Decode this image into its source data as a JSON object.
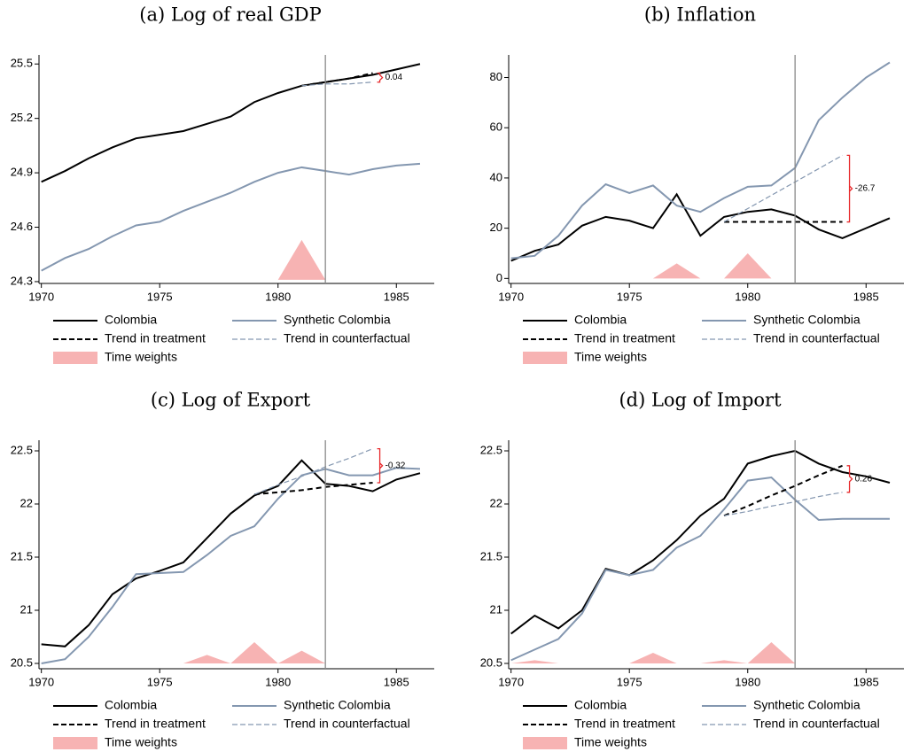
{
  "chart_data": [
    {
      "type": "line",
      "title": "(a) Log of real GDP",
      "x": [
        1970,
        1971,
        1972,
        1973,
        1974,
        1975,
        1976,
        1977,
        1978,
        1979,
        1980,
        1981,
        1982,
        1983,
        1984,
        1985,
        1986
      ],
      "xlim": [
        1969.9,
        1986.6
      ],
      "xticks": [
        1970,
        1975,
        1980,
        1985
      ],
      "ylim": [
        24.29,
        25.55
      ],
      "yticks": [
        24.3,
        24.6,
        24.9,
        25.2,
        25.5
      ],
      "vline": 1982,
      "annotation": "0.04",
      "annotation_color": "#e8282a",
      "series": [
        {
          "name": "Colombia",
          "color": "#000000",
          "dashed": false,
          "values": [
            24.85,
            24.91,
            24.98,
            25.04,
            25.09,
            25.11,
            25.13,
            25.17,
            25.21,
            25.29,
            25.34,
            25.38,
            25.4,
            25.42,
            25.44,
            25.47,
            25.5
          ]
        },
        {
          "name": "Synthetic Colombia",
          "color": "#8497b0",
          "dashed": false,
          "values": [
            24.36,
            24.43,
            24.48,
            24.55,
            24.61,
            24.63,
            24.69,
            24.74,
            24.79,
            24.85,
            24.9,
            24.93,
            24.91,
            24.89,
            24.92,
            24.94,
            24.95
          ]
        },
        {
          "name": "Trend in treatment",
          "color": "#000000",
          "dashed": true,
          "values": [
            null,
            null,
            null,
            null,
            null,
            null,
            null,
            null,
            null,
            null,
            null,
            25.38,
            25.4,
            25.42,
            25.45,
            null,
            null
          ]
        },
        {
          "name": "Trend in counterfactual",
          "color": "#8497b0",
          "dashed": true,
          "values": [
            null,
            null,
            null,
            null,
            null,
            null,
            null,
            null,
            null,
            null,
            null,
            25.38,
            25.39,
            25.39,
            25.4,
            null,
            null
          ]
        },
        {
          "name": "Time weights",
          "color": "#f7b3b3",
          "area": true,
          "values": [
            24.31,
            24.31,
            24.31,
            24.31,
            24.31,
            24.31,
            24.31,
            24.31,
            24.31,
            24.31,
            24.31,
            24.53,
            24.31,
            null,
            null,
            null,
            null
          ]
        }
      ]
    },
    {
      "type": "line",
      "title": "(b) Inflation",
      "x": [
        1970,
        1971,
        1972,
        1973,
        1974,
        1975,
        1976,
        1977,
        1978,
        1979,
        1980,
        1981,
        1982,
        1983,
        1984,
        1985,
        1986
      ],
      "xlim": [
        1969.9,
        1986.6
      ],
      "xticks": [
        1970,
        1975,
        1980,
        1985
      ],
      "ylim": [
        -2,
        89
      ],
      "yticks": [
        0,
        20,
        40,
        60,
        80
      ],
      "vline": 1982,
      "annotation": "-26.7",
      "annotation_color": "#e8282a",
      "series": [
        {
          "name": "Colombia",
          "color": "#000000",
          "dashed": false,
          "values": [
            7,
            11,
            13.5,
            21,
            24.5,
            23,
            20,
            33.5,
            17,
            24.5,
            26.5,
            27.5,
            25,
            19.5,
            16,
            20,
            24
          ]
        },
        {
          "name": "Synthetic Colombia",
          "color": "#8497b0",
          "dashed": false,
          "values": [
            8,
            9,
            17,
            29,
            37.5,
            34,
            37,
            29,
            26.5,
            32,
            36.5,
            37,
            44,
            63,
            72,
            80,
            86
          ]
        },
        {
          "name": "Trend in treatment",
          "color": "#000000",
          "dashed": true,
          "values": [
            null,
            null,
            null,
            null,
            null,
            null,
            null,
            null,
            null,
            22.5,
            22.5,
            22.5,
            22.5,
            22.5,
            22.5,
            null,
            null
          ]
        },
        {
          "name": "Trend in counterfactual",
          "color": "#8497b0",
          "dashed": true,
          "values": [
            null,
            null,
            null,
            null,
            null,
            null,
            null,
            null,
            null,
            22.5,
            27.8,
            33.1,
            38.4,
            43.7,
            49,
            null,
            null
          ]
        },
        {
          "name": "Time weights",
          "color": "#f7b3b3",
          "area": true,
          "values": [
            0,
            0,
            0,
            0,
            0,
            0,
            0,
            6,
            0,
            0,
            10,
            0,
            0,
            null,
            null,
            null,
            null
          ]
        }
      ]
    },
    {
      "type": "line",
      "title": "(c) Log of Export",
      "x": [
        1970,
        1971,
        1972,
        1973,
        1974,
        1975,
        1976,
        1977,
        1978,
        1979,
        1980,
        1981,
        1982,
        1983,
        1984,
        1985,
        1986
      ],
      "xlim": [
        1969.9,
        1986.6
      ],
      "xticks": [
        1970,
        1975,
        1980,
        1985
      ],
      "ylim": [
        20.45,
        22.6
      ],
      "yticks": [
        20.5,
        21,
        21.5,
        22,
        22.5
      ],
      "vline": 1982,
      "annotation": "-0.32",
      "annotation_color": "#e8282a",
      "series": [
        {
          "name": "Colombia",
          "color": "#000000",
          "dashed": false,
          "values": [
            20.68,
            20.66,
            20.86,
            21.15,
            21.3,
            21.37,
            21.45,
            21.68,
            21.91,
            22.08,
            22.17,
            22.41,
            22.19,
            22.17,
            22.12,
            22.23,
            22.29
          ]
        },
        {
          "name": "Synthetic Colombia",
          "color": "#8497b0",
          "dashed": false,
          "values": [
            20.5,
            20.54,
            20.75,
            21.03,
            21.34,
            21.35,
            21.36,
            21.52,
            21.7,
            21.79,
            22.05,
            22.27,
            22.33,
            22.27,
            22.27,
            22.34,
            22.33
          ]
        },
        {
          "name": "Trend in treatment",
          "color": "#000000",
          "dashed": true,
          "values": [
            null,
            null,
            null,
            null,
            null,
            null,
            null,
            null,
            null,
            22.09,
            22.11,
            22.13,
            22.16,
            22.18,
            22.2,
            null,
            null
          ]
        },
        {
          "name": "Trend in counterfactual",
          "color": "#8497b0",
          "dashed": true,
          "values": [
            null,
            null,
            null,
            null,
            null,
            null,
            null,
            null,
            null,
            22.09,
            22.18,
            22.26,
            22.35,
            22.43,
            22.52,
            null,
            null
          ]
        },
        {
          "name": "Time weights",
          "color": "#f7b3b3",
          "area": true,
          "values": [
            20.5,
            20.5,
            20.5,
            20.5,
            20.5,
            20.5,
            20.5,
            20.58,
            20.5,
            20.7,
            20.5,
            20.62,
            20.5,
            null,
            null,
            null,
            null
          ]
        }
      ]
    },
    {
      "type": "line",
      "title": "(d) Log of Import",
      "x": [
        1970,
        1971,
        1972,
        1973,
        1974,
        1975,
        1976,
        1977,
        1978,
        1979,
        1980,
        1981,
        1982,
        1983,
        1984,
        1985,
        1986
      ],
      "xlim": [
        1969.9,
        1986.6
      ],
      "xticks": [
        1970,
        1975,
        1980,
        1985
      ],
      "ylim": [
        20.45,
        22.6
      ],
      "yticks": [
        20.5,
        21,
        21.5,
        22,
        22.5
      ],
      "vline": 1982,
      "annotation": "0.26",
      "annotation_color": "#e8282a",
      "series": [
        {
          "name": "Colombia",
          "color": "#000000",
          "dashed": false,
          "values": [
            20.78,
            20.95,
            20.83,
            21.0,
            21.39,
            21.33,
            21.47,
            21.66,
            21.89,
            22.05,
            22.38,
            22.45,
            22.5,
            22.38,
            22.3,
            22.26,
            22.2
          ]
        },
        {
          "name": "Synthetic Colombia",
          "color": "#8497b0",
          "dashed": false,
          "values": [
            20.53,
            20.63,
            20.73,
            20.97,
            21.38,
            21.33,
            21.38,
            21.59,
            21.7,
            21.95,
            22.22,
            22.25,
            22.04,
            21.85,
            21.86,
            21.86,
            21.86
          ]
        },
        {
          "name": "Trend in treatment",
          "color": "#000000",
          "dashed": true,
          "values": [
            null,
            null,
            null,
            null,
            null,
            null,
            null,
            null,
            null,
            21.89,
            21.98,
            22.08,
            22.17,
            22.27,
            22.36,
            null,
            null
          ]
        },
        {
          "name": "Trend in counterfactual",
          "color": "#8497b0",
          "dashed": true,
          "values": [
            null,
            null,
            null,
            null,
            null,
            null,
            null,
            null,
            null,
            21.89,
            21.93,
            21.98,
            22.02,
            22.07,
            22.11,
            null,
            null
          ]
        },
        {
          "name": "Time weights",
          "color": "#f7b3b3",
          "area": true,
          "values": [
            20.5,
            20.53,
            20.5,
            20.5,
            20.5,
            20.5,
            20.6,
            20.5,
            20.5,
            20.53,
            20.5,
            20.7,
            20.5,
            null,
            null,
            null,
            null
          ]
        }
      ]
    }
  ]
}
